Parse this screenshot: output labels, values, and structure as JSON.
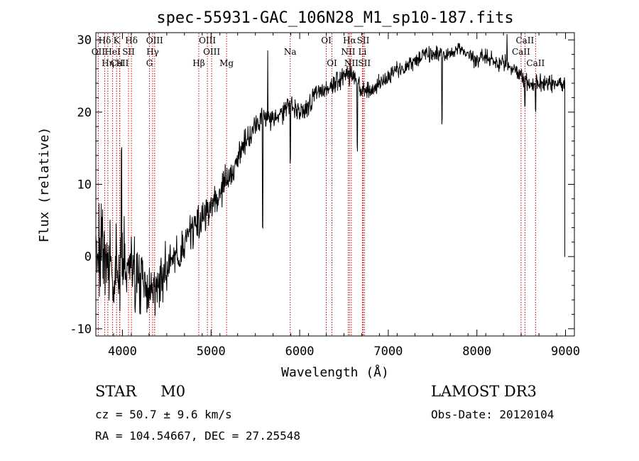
{
  "chart_data": {
    "type": "line",
    "title": "spec-55931-GAC_106N28_M1_sp10-187.fits",
    "xlabel": "Wavelength (Å)",
    "ylabel": "Flux (relative)",
    "xlim": [
      3700,
      9100
    ],
    "ylim": [
      -11,
      31
    ],
    "xticks": [
      4000,
      5000,
      6000,
      7000,
      8000,
      9000
    ],
    "yticks": [
      -10,
      0,
      10,
      20,
      30
    ],
    "line_color": "#000000",
    "marker_color": "#cc0000",
    "continuum": {
      "x": [
        3700,
        3800,
        3900,
        4000,
        4100,
        4200,
        4300,
        4350,
        4400,
        4500,
        4600,
        4700,
        4800,
        4900,
        5000,
        5100,
        5200,
        5300,
        5400,
        5500,
        5600,
        5700,
        5800,
        5880,
        5950,
        6000,
        6100,
        6200,
        6300,
        6400,
        6500,
        6560,
        6600,
        6700,
        6800,
        6900,
        7000,
        7100,
        7200,
        7300,
        7400,
        7500,
        7600,
        7700,
        7800,
        7900,
        8000,
        8100,
        8200,
        8300,
        8400,
        8500,
        8550,
        8600,
        8650,
        8700,
        8800,
        8900,
        8990
      ],
      "y": [
        1,
        0,
        -2,
        -1,
        -1,
        -3,
        -5,
        -5,
        -4,
        -2,
        0,
        1,
        4,
        5,
        7,
        9,
        11,
        14,
        16,
        18,
        19,
        19,
        20,
        21,
        20,
        20,
        21,
        23,
        23,
        24,
        25,
        26,
        25,
        23,
        23,
        24,
        25,
        26,
        26,
        27,
        28,
        28,
        28,
        28,
        29,
        28,
        27,
        28,
        27,
        27,
        26,
        25,
        24,
        24,
        24,
        24,
        24,
        24,
        24
      ]
    },
    "noise_amplitude": {
      "x": [
        3700,
        3900,
        4000,
        4200,
        4400,
        4600,
        5000,
        5500,
        6000,
        7000,
        8000,
        9000
      ],
      "y": [
        5.5,
        4.5,
        4,
        3.5,
        2.5,
        2,
        1.5,
        1.2,
        1,
        0.8,
        0.8,
        0.9
      ]
    },
    "absorption_features": [
      {
        "wave": 5583,
        "depth": 15
      },
      {
        "wave": 5893,
        "depth": 8
      },
      {
        "wave": 6563,
        "depth": 2
      },
      {
        "wave": 6650,
        "depth": 9
      },
      {
        "wave": 7605,
        "depth": 9
      },
      {
        "wave": 8542,
        "depth": 3
      },
      {
        "wave": 8662,
        "depth": 3
      }
    ],
    "emission_features": [
      {
        "wave": 3990,
        "height": 14
      },
      {
        "wave": 5640,
        "height": 10
      },
      {
        "wave": 8340,
        "height": 7
      }
    ],
    "end_drop": {
      "wave": 8992,
      "value": 0
    },
    "lines": [
      {
        "label": "Hδ",
        "wave": 3800,
        "row": 0
      },
      {
        "label": "K",
        "wave": 3933.7,
        "row": 0
      },
      {
        "label": "Hδ",
        "wave": 4101.7,
        "row": 0
      },
      {
        "label": "OIII",
        "wave": 4363.2,
        "row": 0
      },
      {
        "label": "OIII",
        "wave": 4958.9,
        "row": 0
      },
      {
        "label": "OI",
        "wave": 6300.3,
        "row": 0
      },
      {
        "label": "Hα",
        "wave": 6562.8,
        "row": 0
      },
      {
        "label": "SII",
        "wave": 6716.4,
        "row": 0
      },
      {
        "label": "CaII",
        "wave": 8542.1,
        "row": 0
      },
      {
        "label": "OII",
        "wave": 3727,
        "row": 1
      },
      {
        "label": "HeI",
        "wave": 3889,
        "row": 1
      },
      {
        "label": "SII",
        "wave": 4069,
        "row": 1
      },
      {
        "label": "Hγ",
        "wave": 4340.5,
        "row": 1
      },
      {
        "label": "OIII",
        "wave": 5006.8,
        "row": 1
      },
      {
        "label": "Na",
        "wave": 5893,
        "row": 1
      },
      {
        "label": "NII",
        "wave": 6548,
        "row": 1
      },
      {
        "label": "Li",
        "wave": 6707.8,
        "row": 1
      },
      {
        "label": "CaII",
        "wave": 8498,
        "row": 1
      },
      {
        "label": "CaII",
        "wave": 3968.5,
        "row": 2
      },
      {
        "label": "Hη",
        "wave": 3835.4,
        "row": 2
      },
      {
        "label": "H",
        "wave": 3970,
        "row": 2
      },
      {
        "label": "G",
        "wave": 4305,
        "row": 2
      },
      {
        "label": "Hβ",
        "wave": 4861.3,
        "row": 2
      },
      {
        "label": "Mg",
        "wave": 5175,
        "row": 2
      },
      {
        "label": "OI",
        "wave": 6363.8,
        "row": 2
      },
      {
        "label": "NII",
        "wave": 6583.4,
        "row": 2
      },
      {
        "label": "SII",
        "wave": 6730.8,
        "row": 2
      },
      {
        "label": "CaII",
        "wave": 8662.1,
        "row": 2
      }
    ]
  },
  "info": {
    "class_label": "STAR",
    "subclass": "M0",
    "survey": "LAMOST DR3",
    "redshift_text": "cz = 50.7 ± 9.6 km/s",
    "obs_date_text": "Obs-Date: 20120104",
    "coords_text": "RA = 104.54667, DEC =  27.25548"
  }
}
